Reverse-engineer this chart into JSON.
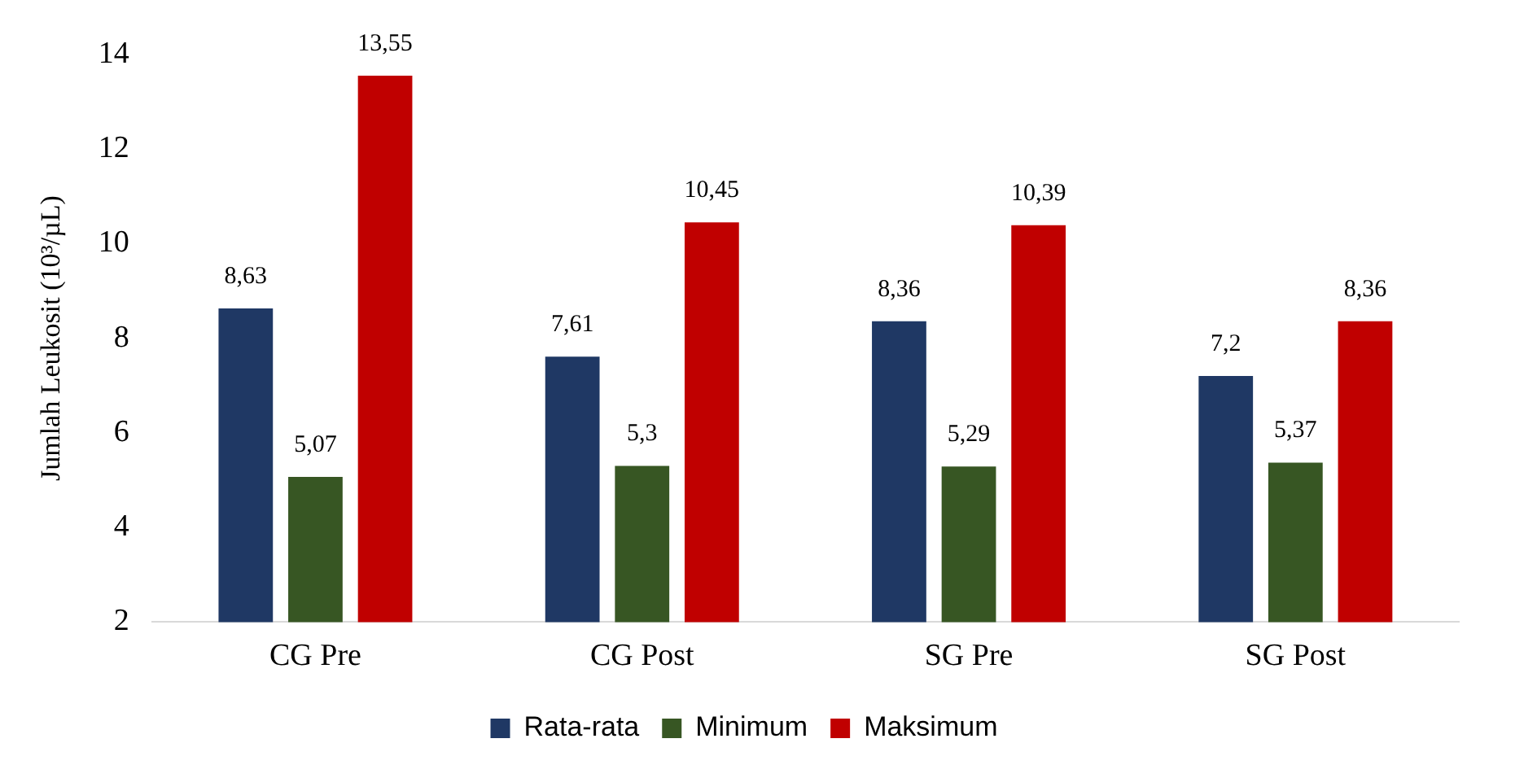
{
  "chart_data": {
    "type": "bar",
    "ylabel": "Jumlah Leukosit (10³/µL)",
    "categories": [
      "CG Pre",
      "CG Post",
      "SG Pre",
      "SG Post"
    ],
    "series": [
      {
        "name": "Rata-rata",
        "color": "#1f3864",
        "values": [
          8.63,
          7.61,
          8.36,
          7.2
        ],
        "value_labels": [
          "8,63",
          "7,61",
          "8,36",
          "7,2"
        ]
      },
      {
        "name": "Minimum",
        "color": "#375623",
        "values": [
          5.07,
          5.3,
          5.29,
          5.37
        ],
        "value_labels": [
          "5,07",
          "5,3",
          "5,29",
          "5,37"
        ]
      },
      {
        "name": "Maksimum",
        "color": "#c00000",
        "values": [
          13.55,
          10.45,
          10.39,
          8.36
        ],
        "value_labels": [
          "13,55",
          "10,45",
          "10,39",
          "8,36"
        ]
      }
    ],
    "ylim": [
      2,
      14
    ],
    "yticks": [
      2,
      4,
      6,
      8,
      10,
      12,
      14
    ],
    "legend": "bottom"
  }
}
